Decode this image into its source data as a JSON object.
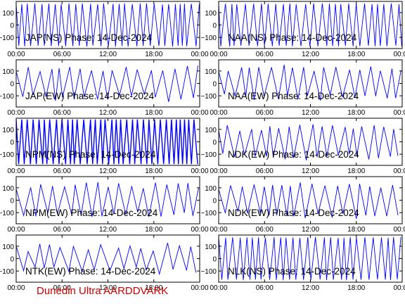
{
  "footer_text": "Dunedin Ultra AARDDVARK",
  "chart_data": [
    {
      "type": "line",
      "panel": 1,
      "title": "JAP(NS) Phase: 14-Dec-2024",
      "x_ticks": [
        "00:00",
        "06:00",
        "12:00",
        "18:00",
        "00:00"
      ],
      "y_ticks": [
        "100",
        "0",
        "-100"
      ],
      "ylim": [
        -190,
        190
      ],
      "series_color": "#0000ff",
      "pattern": "dense",
      "series": [
        {
          "x_hours": [
            0,
            3,
            6,
            9,
            12,
            15,
            18,
            21,
            24
          ],
          "values": [
            180,
            -180,
            180,
            -180,
            180,
            -180,
            180,
            -180,
            180
          ]
        }
      ]
    },
    {
      "type": "line",
      "panel": 2,
      "title": "NAA(NS) Phase: 14-Dec-2024",
      "x_ticks": [
        "00:00",
        "06:00",
        "12:00",
        "18:00",
        "00:00"
      ],
      "y_ticks": [
        "100",
        "0",
        "-100"
      ],
      "ylim": [
        -190,
        190
      ],
      "series_color": "#0000ff",
      "pattern": "dense",
      "series": [
        {
          "x_hours": [
            0,
            3,
            6,
            9,
            12,
            15,
            18,
            21,
            24
          ],
          "values": [
            180,
            -180,
            180,
            -180,
            180,
            -180,
            180,
            -180,
            180
          ]
        }
      ]
    },
    {
      "type": "line",
      "panel": 3,
      "title": "JAP(EW) Phase: 14-Dec-2024",
      "x_ticks": [
        "00:00",
        "06:00",
        "12:00",
        "18:00",
        "00:00"
      ],
      "y_ticks": [
        "100",
        "0",
        "-100"
      ],
      "ylim": [
        -190,
        190
      ],
      "series_color": "#0000ff",
      "pattern": "medium",
      "series": [
        {
          "x_hours": [
            0,
            3,
            6,
            9,
            12,
            15,
            18,
            21,
            24
          ],
          "values": [
            150,
            -160,
            170,
            -170,
            160,
            -150,
            170,
            -160,
            150
          ]
        }
      ]
    },
    {
      "type": "line",
      "panel": 4,
      "title": "NAA(EW) Phase: 14-Dec-2024",
      "x_ticks": [
        "00:00",
        "06:00",
        "12:00",
        "18:00",
        "00:00"
      ],
      "y_ticks": [
        "100",
        "0",
        "-100"
      ],
      "ylim": [
        -190,
        190
      ],
      "series_color": "#0000ff",
      "pattern": "medium",
      "series": [
        {
          "x_hours": [
            0,
            3,
            6,
            9,
            12,
            15,
            18,
            21,
            24
          ],
          "values": [
            150,
            -160,
            170,
            -170,
            160,
            -150,
            170,
            -160,
            150
          ]
        }
      ]
    },
    {
      "type": "line",
      "panel": 5,
      "title": "NPM(NS) Phase: 14-Dec-2024",
      "x_ticks": [
        "00:00",
        "06:00",
        "12:00",
        "18:00",
        "00:00"
      ],
      "y_ticks": [
        "100",
        "0",
        "-100"
      ],
      "ylim": [
        -190,
        190
      ],
      "series_color": "#0000ff",
      "pattern": "solid",
      "series": [
        {
          "x_hours": [
            0,
            3,
            6,
            9,
            12,
            15,
            18,
            21,
            24
          ],
          "values": [
            180,
            -180,
            180,
            -180,
            180,
            -180,
            180,
            -180,
            180
          ]
        }
      ]
    },
    {
      "type": "line",
      "panel": 6,
      "title": "NDK(EW) Phase: 14-Dec-2024",
      "x_ticks": [
        "00:00",
        "06:00",
        "12:00",
        "18:00",
        "00:00"
      ],
      "y_ticks": [
        "100",
        "0",
        "-100"
      ],
      "ylim": [
        -190,
        190
      ],
      "series_color": "#0000ff",
      "pattern": "medium",
      "series": [
        {
          "x_hours": [
            0,
            3,
            6,
            9,
            12,
            15,
            18,
            21,
            24
          ],
          "values": [
            150,
            -160,
            170,
            -170,
            160,
            -150,
            170,
            -160,
            150
          ]
        }
      ]
    },
    {
      "type": "line",
      "panel": 7,
      "title": "NPM(EW) Phase: 14-Dec-2024",
      "x_ticks": [
        "00:00",
        "06:00",
        "12:00",
        "18:00",
        "00:00"
      ],
      "y_ticks": [
        "100",
        "0",
        "-100"
      ],
      "ylim": [
        -190,
        190
      ],
      "series_color": "#0000ff",
      "pattern": "medium",
      "series": [
        {
          "x_hours": [
            0,
            3,
            6,
            9,
            12,
            15,
            18,
            21,
            24
          ],
          "values": [
            150,
            -160,
            170,
            -170,
            160,
            -150,
            170,
            -160,
            150
          ]
        }
      ]
    },
    {
      "type": "line",
      "panel": 8,
      "title": "NDK(EW) Phase: 14-Dec-2024",
      "x_ticks": [
        "00:00",
        "06:00",
        "12:00",
        "18:00",
        "00:00"
      ],
      "y_ticks": [
        "100",
        "0",
        "-100"
      ],
      "ylim": [
        -190,
        190
      ],
      "series_color": "#0000ff",
      "pattern": "medium",
      "series": [
        {
          "x_hours": [
            0,
            3,
            6,
            9,
            12,
            15,
            18,
            21,
            24
          ],
          "values": [
            150,
            -160,
            170,
            -170,
            160,
            -150,
            170,
            -160,
            150
          ]
        }
      ]
    },
    {
      "type": "line",
      "panel": 9,
      "title": "NTK(EW) Phase: 14-Dec-2024",
      "x_ticks": [
        "00:00",
        "06:00",
        "12:00",
        "18:00",
        "00:00"
      ],
      "y_ticks": [
        "100",
        "0",
        "-100"
      ],
      "ylim": [
        -190,
        190
      ],
      "series_color": "#0000ff",
      "pattern": "sparse",
      "series": [
        {
          "x_hours": [
            0,
            3,
            6,
            9,
            12,
            15,
            18,
            21,
            24
          ],
          "values": [
            120,
            -140,
            160,
            -150,
            140,
            -130,
            150,
            -140,
            130
          ]
        }
      ]
    },
    {
      "type": "line",
      "panel": 10,
      "title": "NLK(NS) Phase: 14-Dec-2024",
      "x_ticks": [
        "00:00",
        "06:00",
        "12:00",
        "18:00",
        "00:00"
      ],
      "y_ticks": [
        "100",
        "0",
        "-100"
      ],
      "ylim": [
        -190,
        190
      ],
      "series_color": "#0000ff",
      "pattern": "dense",
      "series": [
        {
          "x_hours": [
            0,
            3,
            6,
            9,
            12,
            15,
            18,
            21,
            24
          ],
          "values": [
            180,
            -180,
            180,
            -180,
            180,
            -180,
            180,
            -180,
            180
          ]
        }
      ]
    }
  ]
}
